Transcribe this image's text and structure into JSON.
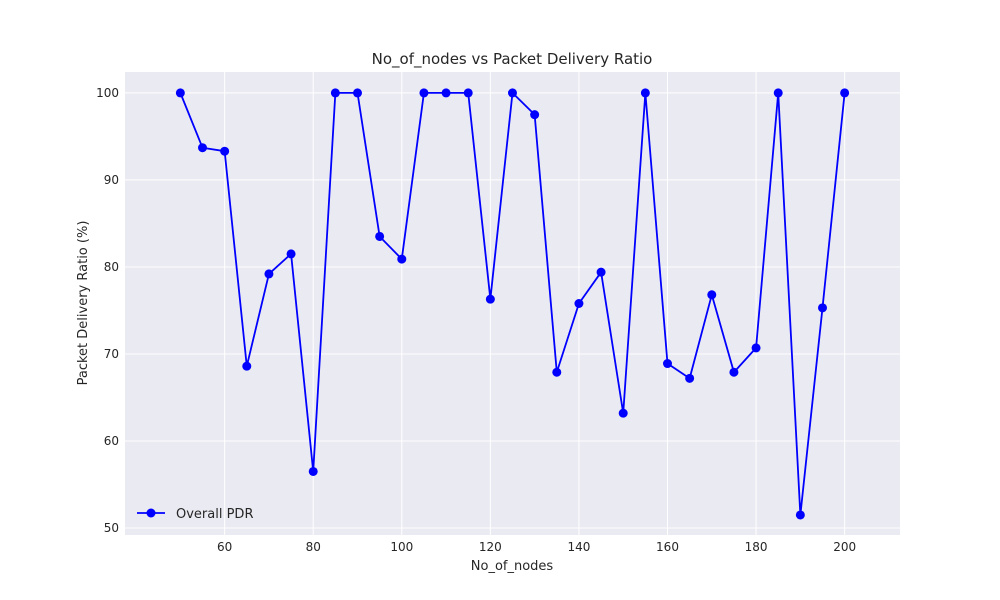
{
  "chart_data": {
    "type": "line",
    "title": "No_of_nodes vs Packet Delivery Ratio",
    "xlabel": "No_of_nodes",
    "ylabel": "Packet Delivery Ratio (%)",
    "xlim": [
      37.5,
      212.5
    ],
    "ylim": [
      49.2,
      102.4
    ],
    "xticks": [
      60,
      80,
      100,
      120,
      140,
      160,
      180,
      200
    ],
    "yticks": [
      50,
      60,
      70,
      80,
      90,
      100
    ],
    "grid": true,
    "legend_position": "lower-left",
    "colors": {
      "series": "#0000ff",
      "plot_bg": "#eaeaf2",
      "grid": "#ffffff",
      "text": "#262626"
    },
    "x": [
      50,
      55,
      60,
      65,
      70,
      75,
      80,
      85,
      90,
      95,
      100,
      105,
      110,
      115,
      120,
      125,
      130,
      135,
      140,
      145,
      150,
      155,
      160,
      165,
      170,
      175,
      180,
      185,
      190,
      195,
      200
    ],
    "series": [
      {
        "name": "Overall PDR",
        "values": [
          100,
          93.7,
          93.3,
          68.6,
          79.2,
          81.5,
          56.5,
          100,
          100,
          83.5,
          80.9,
          100,
          100,
          100,
          76.3,
          100,
          97.5,
          67.9,
          75.8,
          79.4,
          63.2,
          100,
          68.9,
          67.2,
          76.8,
          67.9,
          70.7,
          100,
          51.5,
          75.3,
          100
        ]
      }
    ]
  }
}
